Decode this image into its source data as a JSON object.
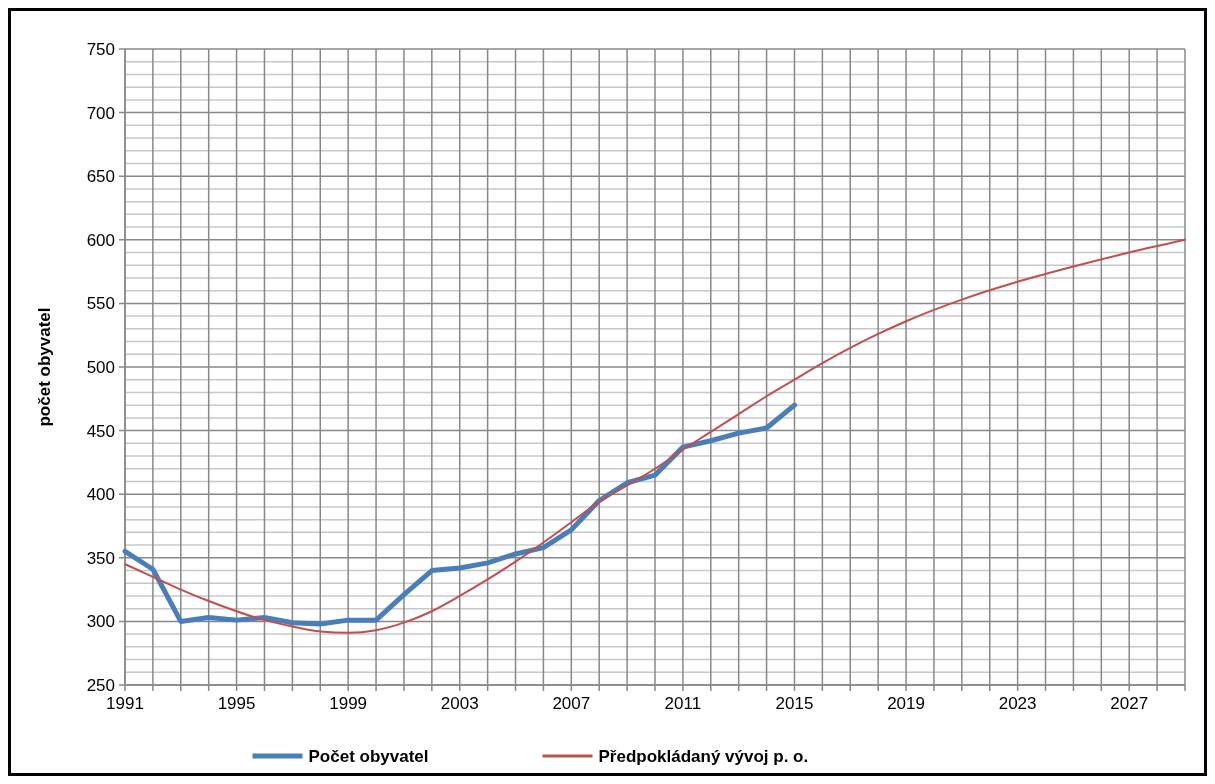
{
  "chart_data": {
    "type": "line",
    "ylabel": "počet obyvatel",
    "xlim": [
      1991,
      2029
    ],
    "xticks": [
      1991,
      1995,
      1999,
      2003,
      2007,
      2011,
      2015,
      2019,
      2023,
      2027
    ],
    "ylim": [
      250,
      750
    ],
    "yticks": [
      250,
      300,
      350,
      400,
      450,
      500,
      550,
      600,
      650,
      700,
      750
    ],
    "grid": true,
    "legend": "bottom",
    "marker": "none",
    "series": [
      {
        "name": "Počet obyvatel",
        "color": "#4a7ebb",
        "x": [
          1991,
          1992,
          1993,
          1994,
          1995,
          1996,
          1997,
          1998,
          1999,
          2000,
          2001,
          2002,
          2003,
          2004,
          2005,
          2006,
          2007,
          2008,
          2009,
          2010,
          2011,
          2012,
          2013,
          2014,
          2015
        ],
        "values": [
          355,
          341,
          300,
          303,
          301,
          303,
          299,
          298,
          301,
          301,
          321,
          340,
          342,
          346,
          353,
          358,
          372,
          395,
          409,
          415,
          437,
          442,
          448,
          452,
          470
        ]
      },
      {
        "name": "Předpokládaný vývoj p. o.",
        "color": "#c0504d",
        "x": [
          1991,
          1992,
          1993,
          1994,
          1995,
          1996,
          1997,
          1998,
          1999,
          2000,
          2001,
          2002,
          2003,
          2004,
          2005,
          2006,
          2007,
          2008,
          2009,
          2010,
          2011,
          2012,
          2013,
          2014,
          2015,
          2016,
          2017,
          2018,
          2019,
          2021,
          2023,
          2025,
          2027,
          2029
        ],
        "values": [
          345,
          335,
          325,
          316,
          308,
          301,
          296,
          292,
          291,
          293,
          299,
          308,
          320,
          333,
          347,
          362,
          378,
          394,
          407,
          420,
          435,
          449,
          463,
          477,
          490,
          503,
          515,
          526,
          536,
          553,
          567,
          579,
          590,
          600
        ]
      }
    ]
  }
}
